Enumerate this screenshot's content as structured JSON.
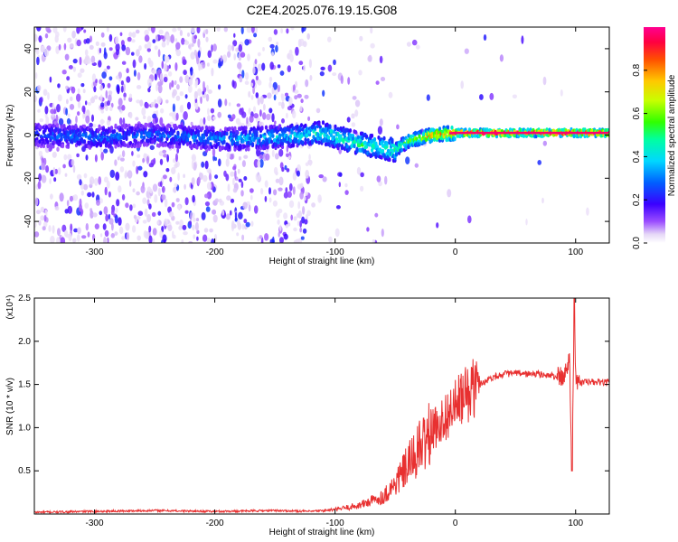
{
  "title": "C2E4.2025.076.19.15.G08",
  "chart_data": [
    {
      "type": "heatmap",
      "xlabel": "Height of straight line (km)",
      "ylabel": "Frequency (Hz)",
      "xlim": [
        -350,
        128
      ],
      "ylim": [
        -50,
        50
      ],
      "xticks": [
        -300,
        -200,
        -100,
        0,
        100
      ],
      "yticks": [
        -40,
        -20,
        0,
        20,
        40
      ],
      "colorbar": {
        "label": "Normalized spectral amplitude",
        "range": [
          0,
          1
        ],
        "ticks": [
          0.0,
          0.2,
          0.4,
          0.6,
          0.8
        ],
        "tick_labels": [
          "0.0",
          "0.2",
          "0.4",
          "0.6",
          "0.8"
        ],
        "colormap": "rainbow (white → violet → blue → cyan → green → yellow → orange → red → magenta)"
      },
      "ridge": {
        "description": "Main spectral line near 0 Hz",
        "points": [
          {
            "x": -350,
            "freq": 0,
            "amp": 0.3
          },
          {
            "x": -300,
            "freq": -1,
            "amp": 0.32
          },
          {
            "x": -250,
            "freq": 0,
            "amp": 0.3
          },
          {
            "x": -190,
            "freq": -2,
            "amp": 0.35
          },
          {
            "x": -150,
            "freq": -1,
            "amp": 0.42
          },
          {
            "x": -110,
            "freq": 1,
            "amp": 0.48
          },
          {
            "x": -80,
            "freq": -4,
            "amp": 0.52
          },
          {
            "x": -50,
            "freq": -7,
            "amp": 0.55
          },
          {
            "x": -40,
            "freq": -3,
            "amp": 0.62
          },
          {
            "x": -20,
            "freq": 0,
            "amp": 0.85
          },
          {
            "x": 0,
            "freq": 1,
            "amp": 0.95
          },
          {
            "x": 50,
            "freq": 1,
            "amp": 0.98
          },
          {
            "x": 95,
            "freq": 1,
            "amp": 0.98
          },
          {
            "x": 128,
            "freq": 1,
            "amp": 0.97
          }
        ]
      }
    },
    {
      "type": "line",
      "xlabel": "Height of straight line (km)",
      "ylabel": "SNR (10 * v/v)",
      "y_multiplier": "(x10⁴)",
      "xlim": [
        -350,
        128
      ],
      "ylim": [
        0,
        2.5
      ],
      "xticks": [
        -300,
        -200,
        -100,
        0,
        100
      ],
      "yticks": [
        0.5,
        1.0,
        1.5,
        2.0,
        2.5
      ],
      "ytick_labels": [
        "0.5",
        "1.0",
        "1.5",
        "2.0",
        "2.5"
      ],
      "color": "#e83030",
      "series": [
        {
          "x": [
            -350,
            -300,
            -250,
            -200,
            -150,
            -120,
            -100,
            -80,
            -60,
            -50,
            -40,
            -30,
            -20,
            -10,
            0,
            10,
            20,
            30,
            40,
            50,
            60,
            70,
            80,
            90,
            95,
            97,
            99,
            100,
            102,
            110,
            128
          ],
          "y": [
            0.02,
            0.03,
            0.04,
            0.03,
            0.04,
            0.03,
            0.05,
            0.1,
            0.2,
            0.35,
            0.55,
            0.75,
            0.95,
            1.1,
            1.25,
            1.4,
            1.5,
            1.58,
            1.62,
            1.63,
            1.62,
            1.62,
            1.6,
            1.58,
            1.8,
            0.5,
            2.5,
            1.55,
            1.52,
            1.53,
            1.52
          ]
        }
      ]
    }
  ],
  "colors": {
    "line": "#e83030",
    "frame": "#000000",
    "background": "#ffffff"
  }
}
